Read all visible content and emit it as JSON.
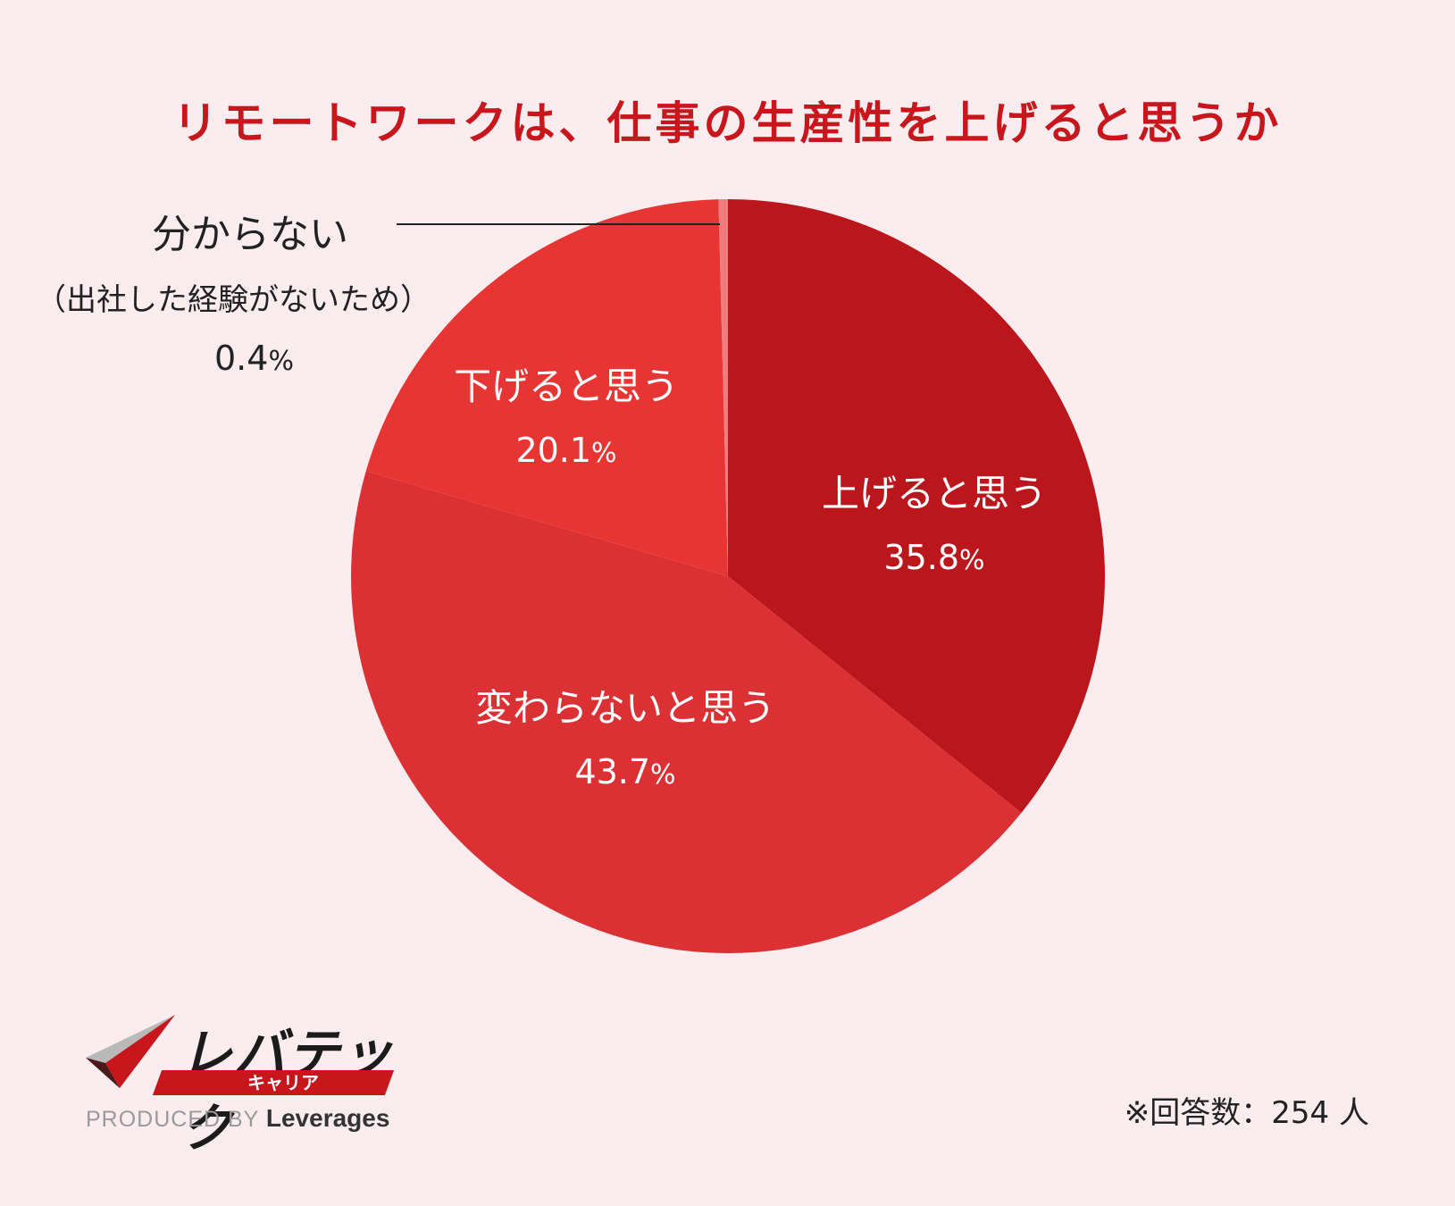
{
  "title": "リモートワークは、仕事の生産性を上げると思うか",
  "colors": {
    "title": "#c8161d",
    "background": "#fbecef",
    "slices": [
      "#bb161b",
      "#db3034",
      "#e73533",
      "#f07c80"
    ]
  },
  "chart_data": {
    "type": "pie",
    "title": "リモートワークは、仕事の生産性を上げると思うか",
    "start_angle": "12 o'clock, clockwise",
    "slices": [
      {
        "label": "上げると思う",
        "value": 35.8,
        "display": "35.8",
        "unit": "%"
      },
      {
        "label": "変わらないと思う",
        "value": 43.7,
        "display": "43.7",
        "unit": "%"
      },
      {
        "label": "下げると思う",
        "value": 20.1,
        "display": "20.1",
        "unit": "%"
      },
      {
        "label": "分からない",
        "note": "（出社した経験がないため）",
        "value": 0.4,
        "display": "0.4",
        "unit": "%"
      }
    ]
  },
  "footnote": "※回答数：254 人",
  "logo": {
    "name": "レバテック",
    "sub": "キャリア",
    "produced_by": "PRODUCED BY",
    "brand": "Leverages"
  }
}
